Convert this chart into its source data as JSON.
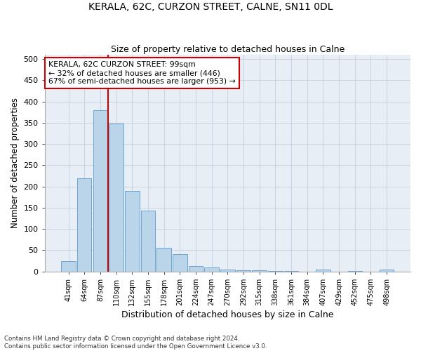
{
  "title_line1": "KERALA, 62C, CURZON STREET, CALNE, SN11 0DL",
  "title_line2": "Size of property relative to detached houses in Calne",
  "xlabel": "Distribution of detached houses by size in Calne",
  "ylabel": "Number of detached properties",
  "bar_labels": [
    "41sqm",
    "64sqm",
    "87sqm",
    "110sqm",
    "132sqm",
    "155sqm",
    "178sqm",
    "201sqm",
    "224sqm",
    "247sqm",
    "270sqm",
    "292sqm",
    "315sqm",
    "338sqm",
    "361sqm",
    "384sqm",
    "407sqm",
    "429sqm",
    "452sqm",
    "475sqm",
    "498sqm"
  ],
  "bar_values": [
    25,
    220,
    380,
    348,
    190,
    143,
    55,
    40,
    12,
    9,
    5,
    3,
    2,
    1,
    1,
    0,
    4,
    0,
    1,
    0,
    4
  ],
  "bar_color": "#bad4ea",
  "bar_edge_color": "#5b9bd5",
  "red_line_index": 2,
  "annotation_text": "KERALA, 62C CURZON STREET: 99sqm\n← 32% of detached houses are smaller (446)\n67% of semi-detached houses are larger (953) →",
  "annotation_box_color": "#ffffff",
  "annotation_box_edge": "#cc0000",
  "grid_color": "#c8d4e4",
  "background_color": "#e8eef6",
  "footnote": "Contains HM Land Registry data © Crown copyright and database right 2024.\nContains public sector information licensed under the Open Government Licence v3.0.",
  "ylim": [
    0,
    510
  ],
  "yticks": [
    0,
    50,
    100,
    150,
    200,
    250,
    300,
    350,
    400,
    450,
    500
  ]
}
